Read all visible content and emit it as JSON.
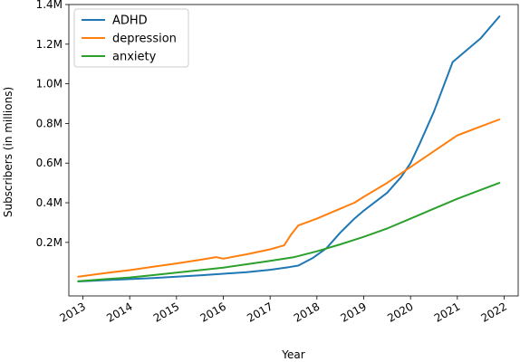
{
  "chart_data": {
    "type": "line",
    "title": "",
    "xlabel": "Year",
    "ylabel": "Subscribers (in millions)",
    "xlim": [
      2012.7,
      2022.3
    ],
    "ylim": [
      -0.07,
      1.4
    ],
    "x_ticks": [
      2013,
      2014,
      2015,
      2016,
      2017,
      2018,
      2019,
      2020,
      2021,
      2022
    ],
    "x_tick_labels": [
      "2013",
      "2014",
      "2015",
      "2016",
      "2017",
      "2018",
      "2019",
      "2020",
      "2021",
      "2022"
    ],
    "y_ticks": [
      0.2,
      0.4,
      0.6,
      0.8,
      1.0,
      1.2,
      1.4
    ],
    "y_tick_labels": [
      "0.2M",
      "0.4M",
      "0.6M",
      "0.8M",
      "1.0M",
      "1.2M",
      "1.4M"
    ],
    "grid": false,
    "legend_position": "top-left",
    "series": [
      {
        "name": "ADHD",
        "color": "#1f77b4",
        "x": [
          2012.9,
          2013.5,
          2014.0,
          2014.5,
          2015.0,
          2015.5,
          2016.0,
          2016.5,
          2017.0,
          2017.4,
          2017.6,
          2017.9,
          2018.2,
          2018.5,
          2018.8,
          2019.0,
          2019.5,
          2019.8,
          2020.0,
          2020.2,
          2020.5,
          2020.9,
          2021.2,
          2021.5,
          2021.9
        ],
        "y": [
          0.003,
          0.01,
          0.015,
          0.02,
          0.027,
          0.034,
          0.042,
          0.05,
          0.062,
          0.075,
          0.083,
          0.12,
          0.17,
          0.25,
          0.32,
          0.36,
          0.45,
          0.53,
          0.6,
          0.7,
          0.86,
          1.11,
          1.17,
          1.23,
          1.34
        ]
      },
      {
        "name": "depression",
        "color": "#ff7f0e",
        "x": [
          2012.9,
          2013.5,
          2014.0,
          2014.5,
          2015.0,
          2015.5,
          2015.85,
          2016.0,
          2016.5,
          2017.0,
          2017.3,
          2017.45,
          2017.6,
          2018.0,
          2018.5,
          2018.8,
          2019.0,
          2019.5,
          2020.0,
          2020.5,
          2021.0,
          2021.5,
          2021.9
        ],
        "y": [
          0.027,
          0.046,
          0.06,
          0.077,
          0.094,
          0.112,
          0.126,
          0.118,
          0.14,
          0.165,
          0.185,
          0.24,
          0.285,
          0.32,
          0.37,
          0.4,
          0.43,
          0.5,
          0.58,
          0.66,
          0.74,
          0.785,
          0.82
        ]
      },
      {
        "name": "anxiety",
        "color": "#2ca02c",
        "x": [
          2012.9,
          2013.5,
          2014.0,
          2014.5,
          2015.0,
          2015.5,
          2016.0,
          2016.5,
          2017.0,
          2017.5,
          2018.0,
          2018.5,
          2019.0,
          2019.5,
          2020.0,
          2020.5,
          2021.0,
          2021.5,
          2021.9
        ],
        "y": [
          0.004,
          0.015,
          0.023,
          0.035,
          0.048,
          0.06,
          0.073,
          0.09,
          0.107,
          0.125,
          0.155,
          0.19,
          0.228,
          0.27,
          0.32,
          0.37,
          0.42,
          0.465,
          0.5
        ]
      }
    ]
  }
}
